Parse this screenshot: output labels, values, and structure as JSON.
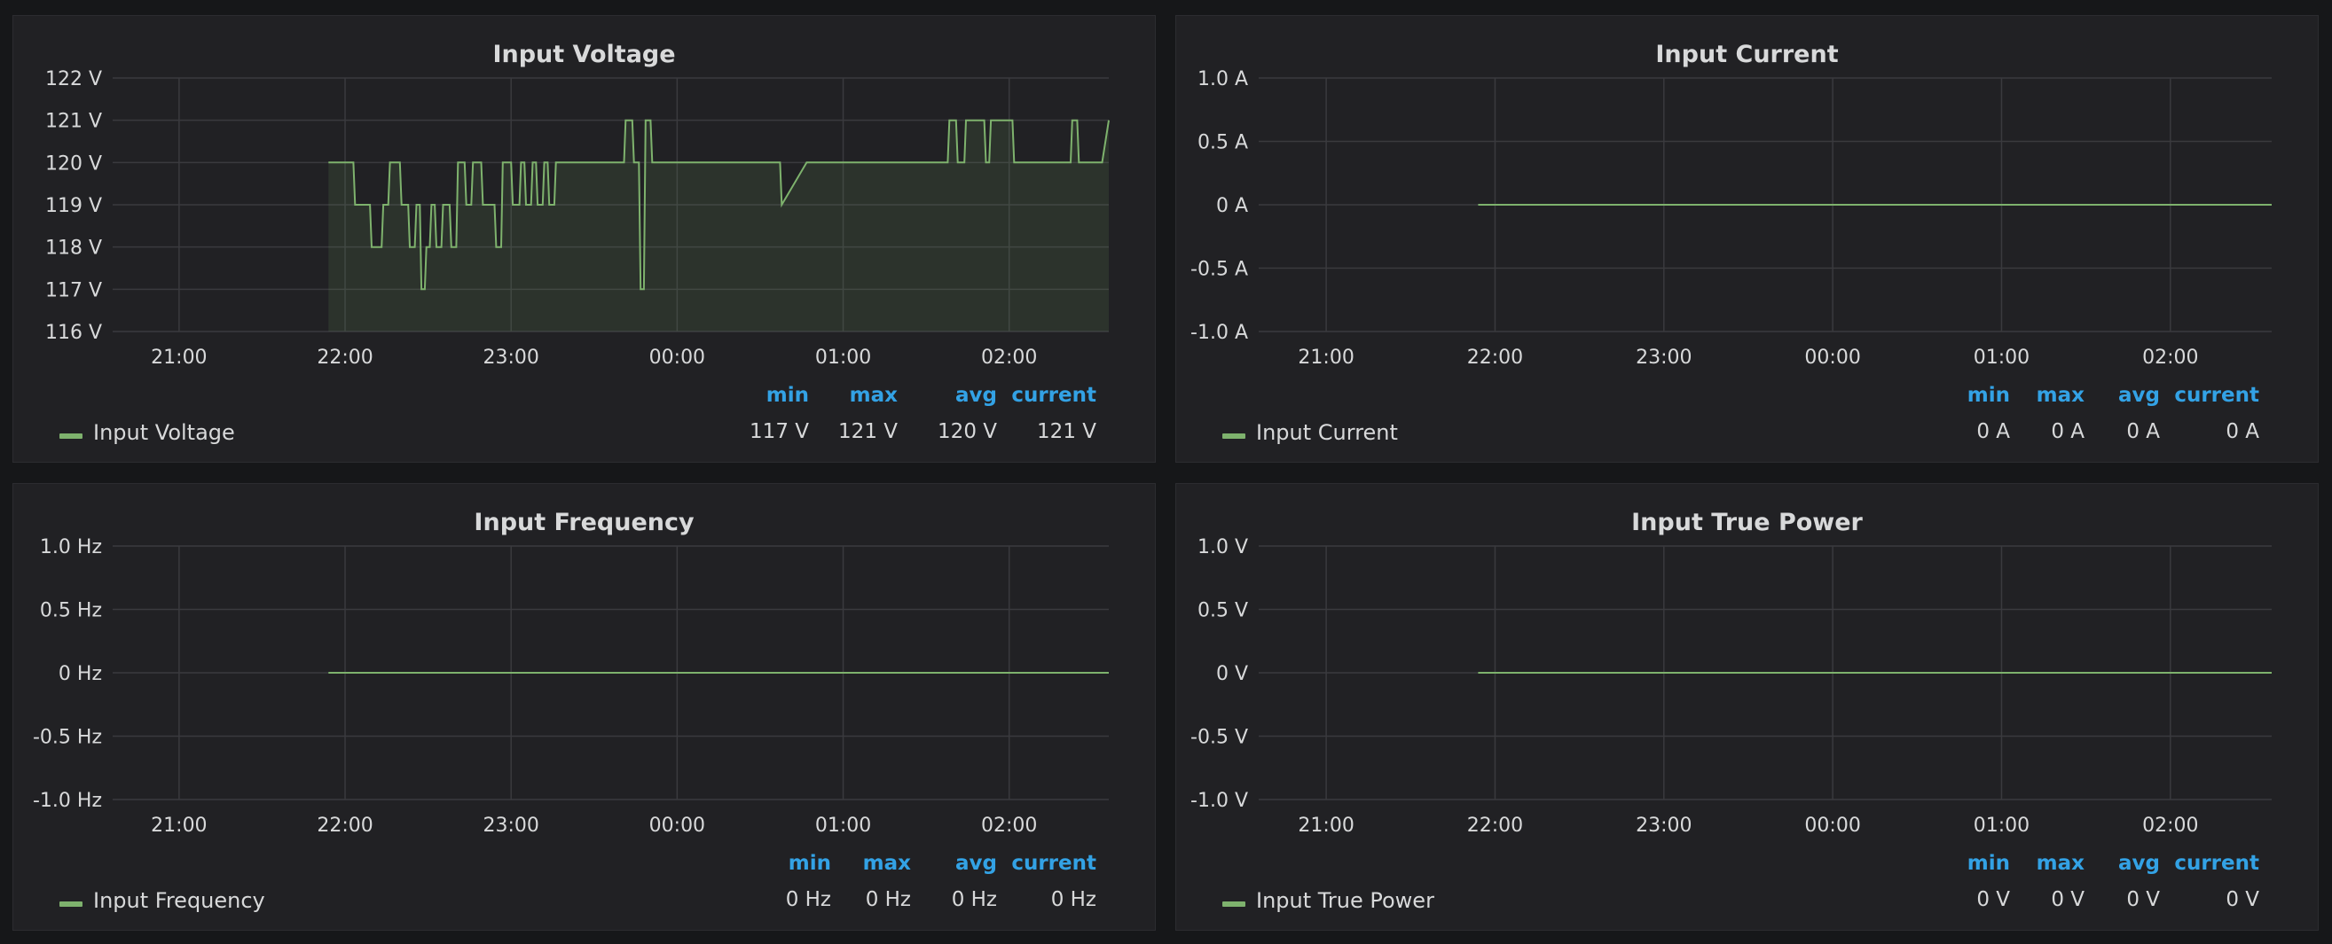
{
  "colors": {
    "series": "#7eb26d",
    "grid": "#3a3a3e",
    "text": "#d8d9da",
    "header": "#33a2e5"
  },
  "x_ticks": [
    "21:00",
    "22:00",
    "23:00",
    "00:00",
    "01:00",
    "02:00"
  ],
  "chart_data": [
    {
      "type": "line",
      "title": "Input Voltage",
      "unit": "V",
      "ylim": [
        116,
        122
      ],
      "y_ticks": [
        "122 V",
        "121 V",
        "120 V",
        "119 V",
        "118 V",
        "117 V",
        "116 V"
      ],
      "x_range_hours": [
        20.6,
        26.6
      ],
      "fill": true,
      "series": [
        {
          "name": "Input Voltage",
          "x": [
            21.9,
            22.05,
            22.06,
            22.15,
            22.16,
            22.22,
            22.23,
            22.26,
            22.27,
            22.33,
            22.34,
            22.38,
            22.39,
            22.42,
            22.43,
            22.45,
            22.46,
            22.48,
            22.49,
            22.51,
            22.52,
            22.54,
            22.55,
            22.58,
            22.59,
            22.63,
            22.64,
            22.67,
            22.68,
            22.72,
            22.73,
            22.76,
            22.77,
            22.82,
            22.83,
            22.9,
            22.91,
            22.94,
            22.95,
            23.0,
            23.01,
            23.05,
            23.06,
            23.08,
            23.09,
            23.12,
            23.13,
            23.15,
            23.16,
            23.19,
            23.2,
            23.22,
            23.23,
            23.26,
            23.27,
            23.68,
            23.69,
            23.73,
            23.74,
            23.77,
            23.78,
            23.8,
            23.81,
            23.84,
            23.85,
            24.62,
            24.63,
            24.78,
            25.63,
            25.64,
            25.68,
            25.69,
            25.73,
            25.74,
            25.85,
            25.86,
            25.88,
            25.89,
            26.02,
            26.03,
            26.37,
            26.38,
            26.41,
            26.42,
            26.56,
            26.6
          ],
          "values": [
            120,
            120,
            119,
            119,
            118,
            118,
            119,
            119,
            120,
            120,
            119,
            119,
            118,
            118,
            119,
            119,
            117,
            117,
            118,
            118,
            119,
            119,
            118,
            118,
            119,
            119,
            118,
            118,
            120,
            120,
            119,
            119,
            120,
            120,
            119,
            119,
            118,
            118,
            120,
            120,
            119,
            119,
            120,
            120,
            119,
            119,
            120,
            120,
            119,
            119,
            120,
            120,
            119,
            119,
            120,
            120,
            121,
            121,
            120,
            120,
            117,
            117,
            121,
            121,
            120,
            120,
            119,
            120,
            120,
            121,
            121,
            120,
            120,
            121,
            121,
            120,
            120,
            121,
            121,
            120,
            120,
            121,
            121,
            120,
            120,
            121
          ]
        }
      ],
      "legend": {
        "headers": [
          "min",
          "max",
          "avg",
          "current"
        ],
        "name": "Input Voltage",
        "values": [
          "117 V",
          "121 V",
          "120 V",
          "121 V"
        ]
      }
    },
    {
      "type": "line",
      "title": "Input Current",
      "unit": "A",
      "ylim": [
        -1.0,
        1.0
      ],
      "y_ticks": [
        "1.0 A",
        "0.5 A",
        "0 A",
        "-0.5 A",
        "-1.0 A"
      ],
      "x_range_hours": [
        20.6,
        26.6
      ],
      "fill": false,
      "series": [
        {
          "name": "Input Current",
          "x": [
            21.9,
            26.6
          ],
          "values": [
            0,
            0
          ]
        }
      ],
      "legend": {
        "headers": [
          "min",
          "max",
          "avg",
          "current"
        ],
        "name": "Input Current",
        "values": [
          "0 A",
          "0 A",
          "0 A",
          "0 A"
        ]
      }
    },
    {
      "type": "line",
      "title": "Input Frequency",
      "unit": "Hz",
      "ylim": [
        -1.0,
        1.0
      ],
      "y_ticks": [
        "1.0 Hz",
        "0.5 Hz",
        "0 Hz",
        "-0.5 Hz",
        "-1.0 Hz"
      ],
      "x_range_hours": [
        20.6,
        26.6
      ],
      "fill": false,
      "series": [
        {
          "name": "Input Frequency",
          "x": [
            21.9,
            26.6
          ],
          "values": [
            0,
            0
          ]
        }
      ],
      "legend": {
        "headers": [
          "min",
          "max",
          "avg",
          "current"
        ],
        "name": "Input Frequency",
        "values": [
          "0 Hz",
          "0 Hz",
          "0 Hz",
          "0 Hz"
        ]
      }
    },
    {
      "type": "line",
      "title": "Input True Power",
      "unit": "V",
      "ylim": [
        -1.0,
        1.0
      ],
      "y_ticks": [
        "1.0 V",
        "0.5 V",
        "0 V",
        "-0.5 V",
        "-1.0 V"
      ],
      "x_range_hours": [
        20.6,
        26.6
      ],
      "fill": false,
      "series": [
        {
          "name": "Input True Power",
          "x": [
            21.9,
            26.6
          ],
          "values": [
            0,
            0
          ]
        }
      ],
      "legend": {
        "headers": [
          "min",
          "max",
          "avg",
          "current"
        ],
        "name": "Input True Power",
        "values": [
          "0 V",
          "0 V",
          "0 V",
          "0 V"
        ]
      }
    }
  ]
}
